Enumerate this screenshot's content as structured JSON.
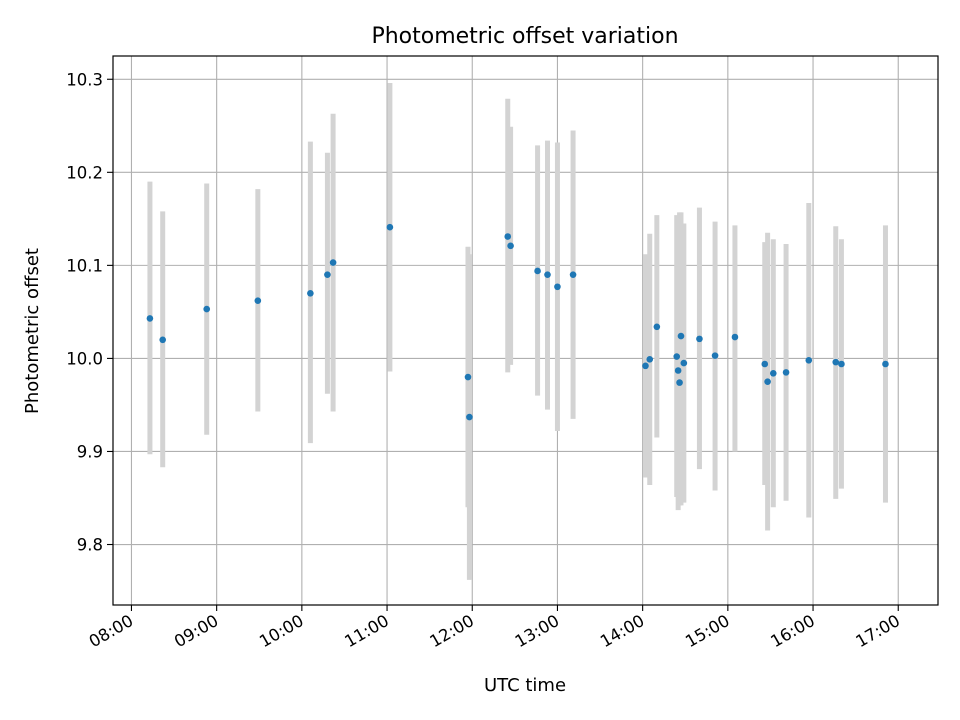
{
  "chart_data": {
    "type": "scatter",
    "title": "Photometric offset variation",
    "xlabel": "UTC time",
    "ylabel": "Photometric offset",
    "x_ticks": [
      "08:00",
      "09:00",
      "10:00",
      "11:00",
      "12:00",
      "13:00",
      "14:00",
      "15:00",
      "16:00",
      "17:00"
    ],
    "y_ticks": [
      "9.8",
      "9.9",
      "10.0",
      "10.1",
      "10.2",
      "10.3"
    ],
    "xlim": [
      "07:47",
      "17:28"
    ],
    "ylim": [
      9.735,
      10.325
    ],
    "grid": true,
    "point_color": "#1f77b4",
    "errorbar_color": "#d3d3d3",
    "points": [
      {
        "x": "08:13",
        "y": 10.043,
        "err_low": 9.897,
        "err_high": 10.19
      },
      {
        "x": "08:22",
        "y": 10.02,
        "err_low": 9.883,
        "err_high": 10.158
      },
      {
        "x": "08:53",
        "y": 10.053,
        "err_low": 9.918,
        "err_high": 10.188
      },
      {
        "x": "09:29",
        "y": 10.062,
        "err_low": 9.943,
        "err_high": 10.182
      },
      {
        "x": "10:06",
        "y": 10.07,
        "err_low": 9.909,
        "err_high": 10.233
      },
      {
        "x": "10:18",
        "y": 10.09,
        "err_low": 9.962,
        "err_high": 10.221
      },
      {
        "x": "10:22",
        "y": 10.103,
        "err_low": 9.943,
        "err_high": 10.263
      },
      {
        "x": "11:02",
        "y": 10.141,
        "err_low": 9.986,
        "err_high": 10.296
      },
      {
        "x": "11:57",
        "y": 9.98,
        "err_low": 9.84,
        "err_high": 10.12
      },
      {
        "x": "11:58",
        "y": 9.937,
        "err_low": 9.762,
        "err_high": 10.112
      },
      {
        "x": "12:25",
        "y": 10.131,
        "err_low": 9.985,
        "err_high": 10.279
      },
      {
        "x": "12:27",
        "y": 10.121,
        "err_low": 9.993,
        "err_high": 10.249
      },
      {
        "x": "12:46",
        "y": 10.094,
        "err_low": 9.96,
        "err_high": 10.229
      },
      {
        "x": "12:53",
        "y": 10.09,
        "err_low": 9.945,
        "err_high": 10.234
      },
      {
        "x": "12:60",
        "y": 10.077,
        "err_low": 9.922,
        "err_high": 10.232
      },
      {
        "x": "13:11",
        "y": 10.09,
        "err_low": 9.935,
        "err_high": 10.245
      },
      {
        "x": "14:02",
        "y": 9.992,
        "err_low": 9.872,
        "err_high": 10.112
      },
      {
        "x": "14:05",
        "y": 9.999,
        "err_low": 9.864,
        "err_high": 10.134
      },
      {
        "x": "14:10",
        "y": 10.034,
        "err_low": 9.915,
        "err_high": 10.154
      },
      {
        "x": "14:24",
        "y": 10.002,
        "err_low": 9.851,
        "err_high": 10.154
      },
      {
        "x": "14:25",
        "y": 9.987,
        "err_low": 9.837,
        "err_high": 10.137
      },
      {
        "x": "14:26",
        "y": 9.974,
        "err_low": 9.842,
        "err_high": 10.157
      },
      {
        "x": "14:27",
        "y": 10.024,
        "err_low": 9.842,
        "err_high": 10.157
      },
      {
        "x": "14:29",
        "y": 9.995,
        "err_low": 9.845,
        "err_high": 10.145
      },
      {
        "x": "14:40",
        "y": 10.021,
        "err_low": 9.881,
        "err_high": 10.162
      },
      {
        "x": "14:51",
        "y": 10.003,
        "err_low": 9.858,
        "err_high": 10.147
      },
      {
        "x": "15:05",
        "y": 10.023,
        "err_low": 9.9,
        "err_high": 10.143
      },
      {
        "x": "15:26",
        "y": 9.994,
        "err_low": 9.864,
        "err_high": 10.125
      },
      {
        "x": "15:28",
        "y": 9.975,
        "err_low": 9.815,
        "err_high": 10.135
      },
      {
        "x": "15:32",
        "y": 9.984,
        "err_low": 9.84,
        "err_high": 10.128
      },
      {
        "x": "15:41",
        "y": 9.985,
        "err_low": 9.847,
        "err_high": 10.123
      },
      {
        "x": "15:57",
        "y": 9.998,
        "err_low": 9.829,
        "err_high": 10.167
      },
      {
        "x": "16:16",
        "y": 9.996,
        "err_low": 9.849,
        "err_high": 10.142
      },
      {
        "x": "16:20",
        "y": 9.994,
        "err_low": 9.86,
        "err_high": 10.128
      },
      {
        "x": "16:51",
        "y": 9.994,
        "err_low": 9.845,
        "err_high": 10.143
      }
    ]
  }
}
